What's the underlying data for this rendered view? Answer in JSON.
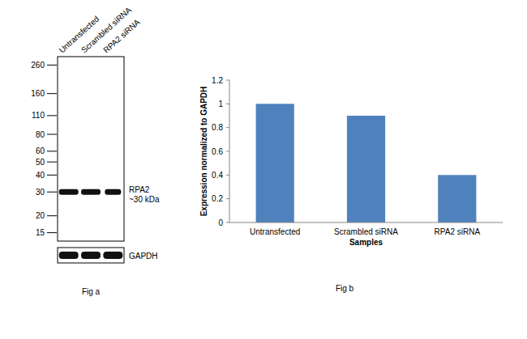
{
  "blot": {
    "lanes": [
      "Untransfected",
      "Scrambled siRNA",
      "RPA2 siRNA"
    ],
    "markers": [
      260,
      160,
      110,
      80,
      60,
      50,
      40,
      30,
      20,
      15
    ],
    "mw_lim": [
      300,
      13
    ],
    "band": {
      "label": "RPA2",
      "size_label": "~30 kDa",
      "mw": 30
    },
    "loading_control": "GAPDH",
    "caption": "Fig a"
  },
  "chart_data": {
    "type": "bar",
    "caption": "Fig b",
    "x_label": "Samples",
    "y_label": "Expression normalized to GAPDH",
    "categories": [
      "Untransfected",
      "Scrambled siRNA",
      "RPA2 siRNA"
    ],
    "values": [
      1,
      0.9,
      0.4
    ],
    "color": "#4f81bd",
    "ylim": [
      0,
      1.2
    ],
    "yticks": [
      0,
      0.2,
      0.4,
      0.6,
      0.8,
      1,
      1.2
    ],
    "grid": false
  }
}
